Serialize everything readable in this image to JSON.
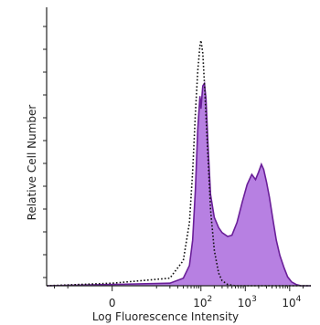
{
  "chart_data": {
    "type": "area",
    "xlabel": "Log Fluorescence Intensity",
    "ylabel": "Relative Cell Number",
    "x_scale": "biexponential",
    "x_ticks": [
      {
        "value": 0,
        "base": "0",
        "exp": ""
      },
      {
        "value": 100,
        "base": "10",
        "exp": "2"
      },
      {
        "value": 1000,
        "base": "10",
        "exp": "3"
      },
      {
        "value": 10000,
        "base": "10",
        "exp": "4"
      }
    ],
    "xlim": [
      -30,
      30000
    ],
    "ylim": [
      0,
      100
    ],
    "grid": false,
    "legend": "none",
    "series": [
      {
        "style": "dotted",
        "color": "#111111",
        "points": [
          [
            -30,
            0
          ],
          [
            0,
            1
          ],
          [
            20,
            3
          ],
          [
            40,
            10
          ],
          [
            55,
            25
          ],
          [
            65,
            45
          ],
          [
            75,
            68
          ],
          [
            85,
            85
          ],
          [
            95,
            95
          ],
          [
            100,
            97
          ],
          [
            110,
            92
          ],
          [
            120,
            80
          ],
          [
            140,
            55
          ],
          [
            165,
            30
          ],
          [
            200,
            14
          ],
          [
            250,
            5
          ],
          [
            300,
            2
          ],
          [
            400,
            0.5
          ],
          [
            600,
            0
          ],
          [
            30000,
            0
          ]
        ]
      },
      {
        "style": "filled",
        "color": "#6a1f99",
        "fill": "#b780e2",
        "points": [
          [
            -30,
            0
          ],
          [
            0,
            0.5
          ],
          [
            20,
            1
          ],
          [
            40,
            3
          ],
          [
            55,
            8
          ],
          [
            65,
            18
          ],
          [
            75,
            38
          ],
          [
            85,
            62
          ],
          [
            95,
            75
          ],
          [
            100,
            70
          ],
          [
            110,
            79
          ],
          [
            120,
            80
          ],
          [
            130,
            74
          ],
          [
            145,
            55
          ],
          [
            165,
            36
          ],
          [
            200,
            27
          ],
          [
            250,
            23
          ],
          [
            300,
            21
          ],
          [
            400,
            19.5
          ],
          [
            500,
            20
          ],
          [
            650,
            25
          ],
          [
            850,
            33
          ],
          [
            1100,
            40
          ],
          [
            1400,
            44
          ],
          [
            1700,
            42
          ],
          [
            2000,
            45
          ],
          [
            2300,
            48
          ],
          [
            2600,
            46
          ],
          [
            3000,
            41
          ],
          [
            3500,
            35
          ],
          [
            4200,
            26
          ],
          [
            5000,
            18
          ],
          [
            6000,
            12
          ],
          [
            7500,
            7
          ],
          [
            9000,
            3.5
          ],
          [
            11000,
            1.5
          ],
          [
            14000,
            0.5
          ],
          [
            18000,
            0
          ],
          [
            30000,
            0
          ]
        ]
      }
    ]
  }
}
